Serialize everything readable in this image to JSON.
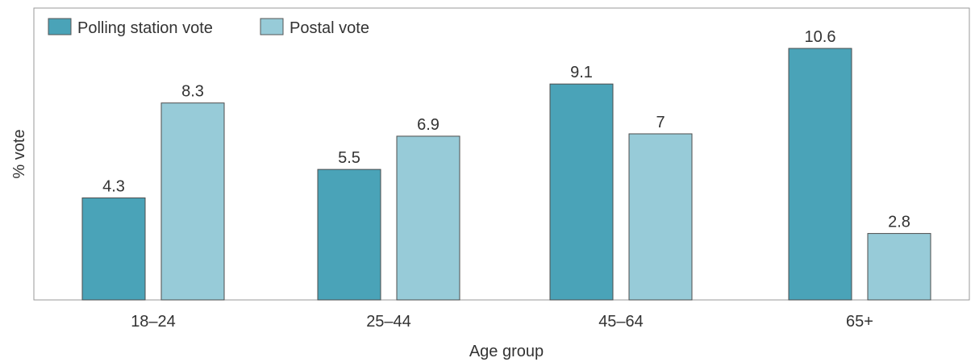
{
  "chart_data": {
    "type": "bar",
    "xlabel": "Age group",
    "ylabel": "% vote",
    "categories": [
      "18–24",
      "25–44",
      "45–64",
      "65+"
    ],
    "series": [
      {
        "name": "Polling station vote",
        "color": "#4aa3b8",
        "values": [
          4.3,
          5.5,
          9.1,
          10.6
        ],
        "labels": [
          "4.3",
          "5.5",
          "9.1",
          "10.6"
        ]
      },
      {
        "name": "Postal vote",
        "color": "#97cbd8",
        "values": [
          8.3,
          6.9,
          7,
          2.8
        ],
        "labels": [
          "8.3",
          "6.9",
          "7",
          "2.8"
        ]
      }
    ],
    "ylim": [
      0,
      12.3
    ],
    "grid": false,
    "legend_position": "top-left"
  }
}
